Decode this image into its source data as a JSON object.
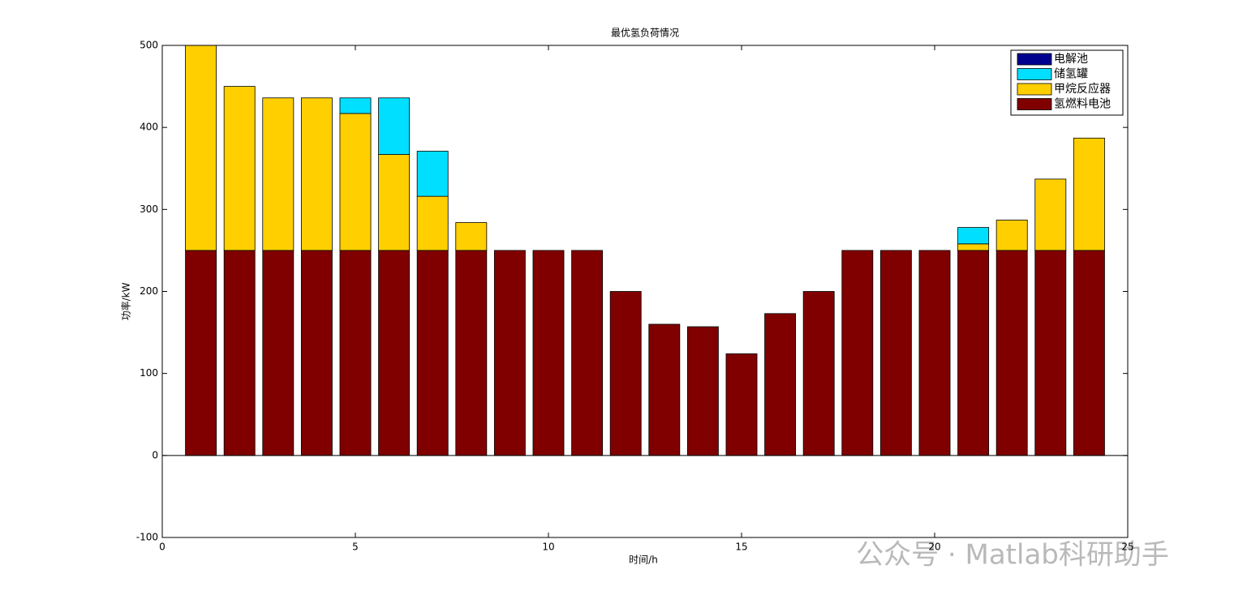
{
  "chart_data": {
    "type": "stacked-bar",
    "title": "最优氢负荷情况",
    "xlabel": "时间/h",
    "ylabel": "功率/kW",
    "x": [
      1,
      2,
      3,
      4,
      5,
      6,
      7,
      8,
      9,
      10,
      11,
      12,
      13,
      14,
      15,
      16,
      17,
      18,
      19,
      20,
      21,
      22,
      23,
      24
    ],
    "series": [
      {
        "name": "电解池",
        "color": "#00008f",
        "values": [
          0,
          0,
          0,
          0,
          0,
          0,
          0,
          0,
          0,
          0,
          0,
          0,
          0,
          0,
          0,
          0,
          0,
          0,
          0,
          0,
          0,
          0,
          0,
          0
        ]
      },
      {
        "name": "储氢罐",
        "color": "#00dfff",
        "values": [
          0,
          0,
          0,
          0,
          19,
          69,
          55,
          0,
          0,
          0,
          0,
          0,
          0,
          0,
          0,
          0,
          0,
          0,
          0,
          0,
          20,
          0,
          0,
          0
        ]
      },
      {
        "name": "甲烷反应器",
        "color": "#ffcf00",
        "values": [
          250,
          200,
          186,
          186,
          167,
          117,
          66,
          34,
          0,
          0,
          0,
          0,
          0,
          0,
          0,
          0,
          0,
          0,
          0,
          0,
          8,
          37,
          87,
          137
        ]
      },
      {
        "name": "氢燃料电池",
        "color": "#800000",
        "values": [
          250,
          250,
          250,
          250,
          250,
          250,
          250,
          250,
          250,
          250,
          250,
          200,
          160,
          157,
          124,
          173,
          200,
          250,
          250,
          250,
          250,
          250,
          250,
          250
        ]
      }
    ],
    "xlim": [
      0,
      25
    ],
    "xticks": [
      0,
      5,
      10,
      15,
      20,
      25
    ],
    "ylim": [
      -100,
      500
    ],
    "yticks": [
      -100,
      0,
      100,
      200,
      300,
      400,
      500
    ],
    "legend": "upper right",
    "watermark": "公众号 · Matlab科研助手"
  }
}
